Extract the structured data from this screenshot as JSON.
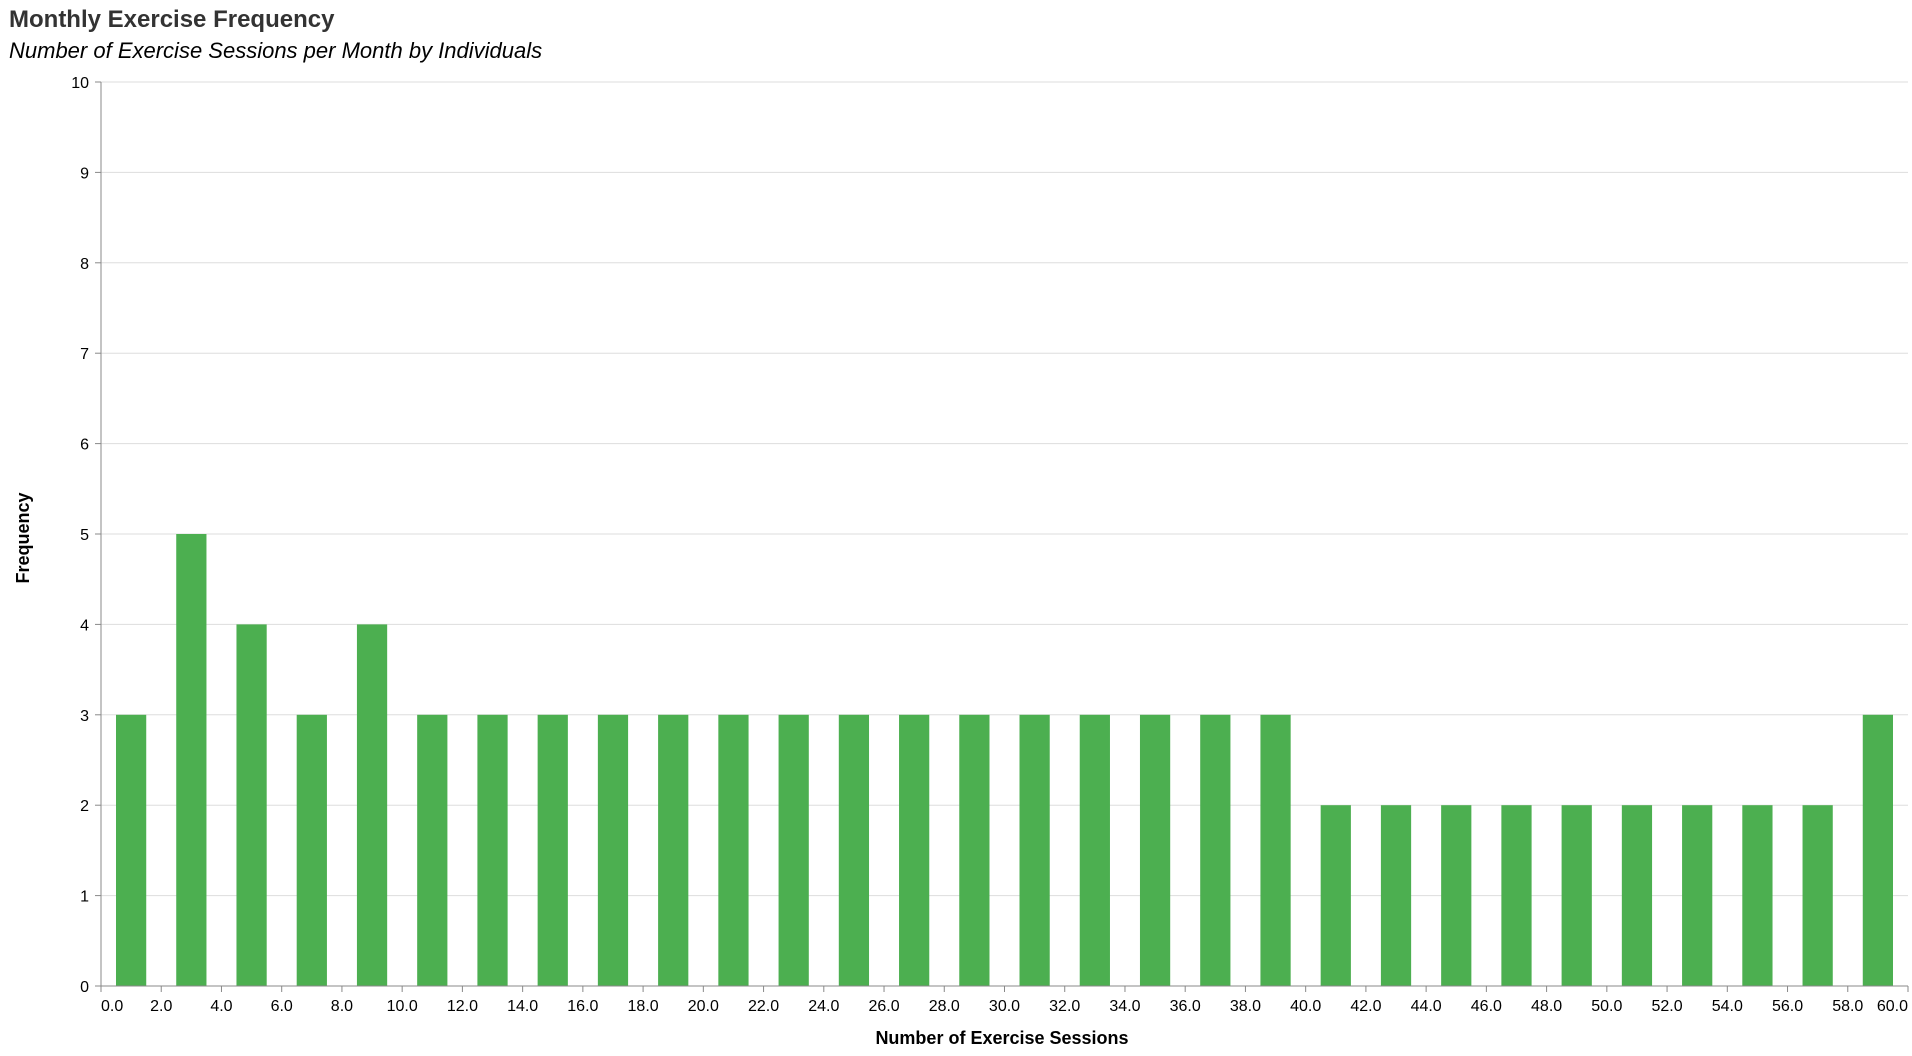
{
  "chart_data": {
    "type": "bar",
    "title": "Monthly Exercise Frequency",
    "subtitle": "Number of Exercise Sessions per Month by Individuals",
    "xlabel": "Number of Exercise Sessions",
    "ylabel": "Frequency",
    "xlim": [
      0,
      60
    ],
    "ylim": [
      0,
      10
    ],
    "bin_width": 2,
    "x_ticks": [
      "0.0",
      "2.0",
      "4.0",
      "6.0",
      "8.0",
      "10.0",
      "12.0",
      "14.0",
      "16.0",
      "18.0",
      "20.0",
      "22.0",
      "24.0",
      "26.0",
      "28.0",
      "30.0",
      "32.0",
      "34.0",
      "36.0",
      "38.0",
      "40.0",
      "42.0",
      "44.0",
      "46.0",
      "48.0",
      "50.0",
      "52.0",
      "54.0",
      "56.0",
      "58.0",
      "60.0"
    ],
    "y_ticks": [
      "0",
      "1",
      "2",
      "3",
      "4",
      "5",
      "6",
      "7",
      "8",
      "9",
      "10"
    ],
    "bins": [
      {
        "start": 0,
        "value": 3
      },
      {
        "start": 2,
        "value": 5
      },
      {
        "start": 4,
        "value": 4
      },
      {
        "start": 6,
        "value": 3
      },
      {
        "start": 8,
        "value": 4
      },
      {
        "start": 10,
        "value": 3
      },
      {
        "start": 12,
        "value": 3
      },
      {
        "start": 14,
        "value": 3
      },
      {
        "start": 16,
        "value": 3
      },
      {
        "start": 18,
        "value": 3
      },
      {
        "start": 20,
        "value": 3
      },
      {
        "start": 22,
        "value": 3
      },
      {
        "start": 24,
        "value": 3
      },
      {
        "start": 26,
        "value": 3
      },
      {
        "start": 28,
        "value": 3
      },
      {
        "start": 30,
        "value": 3
      },
      {
        "start": 32,
        "value": 3
      },
      {
        "start": 34,
        "value": 3
      },
      {
        "start": 36,
        "value": 3
      },
      {
        "start": 38,
        "value": 3
      },
      {
        "start": 40,
        "value": 2
      },
      {
        "start": 42,
        "value": 2
      },
      {
        "start": 44,
        "value": 2
      },
      {
        "start": 46,
        "value": 2
      },
      {
        "start": 48,
        "value": 2
      },
      {
        "start": 50,
        "value": 2
      },
      {
        "start": 52,
        "value": 2
      },
      {
        "start": 54,
        "value": 2
      },
      {
        "start": 56,
        "value": 2
      },
      {
        "start": 58,
        "value": 3
      }
    ],
    "grid": true,
    "legend": "none",
    "bar_color": "#4caf50",
    "grid_color": "#dddddd",
    "axis_color": "#888888"
  }
}
